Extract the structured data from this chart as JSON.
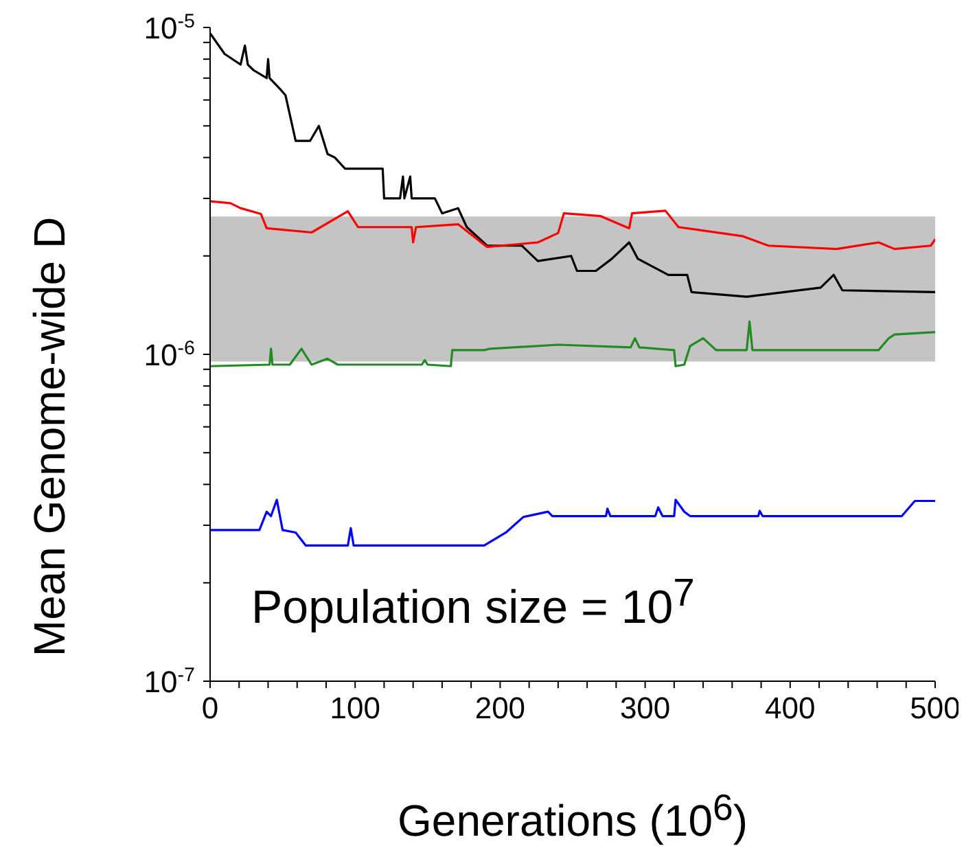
{
  "chart_data": {
    "type": "line",
    "xlabel": "Generations (10$^{6}$)",
    "ylabel": "Mean Genome-wide D",
    "log": "y",
    "xlim": [
      0,
      500
    ],
    "ylim": [
      1e-07,
      1e-05
    ],
    "xticks": [
      0,
      {
        "value": 20,
        "label": null
      },
      {
        "value": 40,
        "label": null
      },
      {
        "value": 60,
        "label": null
      },
      {
        "value": 80,
        "label": null
      },
      100,
      {
        "value": 120,
        "label": null
      },
      {
        "value": 140,
        "label": null
      },
      {
        "value": 160,
        "label": null
      },
      {
        "value": 180,
        "label": null
      },
      200,
      {
        "value": 220,
        "label": null
      },
      {
        "value": 240,
        "label": null
      },
      {
        "value": 260,
        "label": null
      },
      {
        "value": 280,
        "label": null
      },
      300,
      {
        "value": 320,
        "label": null
      },
      {
        "value": 340,
        "label": null
      },
      {
        "value": 360,
        "label": null
      },
      {
        "value": 380,
        "label": null
      },
      400,
      {
        "value": 420,
        "label": null
      },
      {
        "value": 440,
        "label": null
      },
      {
        "value": 460,
        "label": null
      },
      {
        "value": 480,
        "label": null
      },
      500
    ],
    "yticks": [
      {
        "value": 1e-07,
        "label": "10$^{-7}$"
      },
      {
        "value": 2e-07,
        "label": null
      },
      {
        "value": 3e-07,
        "label": null
      },
      {
        "value": 4e-07,
        "label": null
      },
      {
        "value": 5e-07,
        "label": null
      },
      {
        "value": 6e-07,
        "label": null
      },
      {
        "value": 7e-07,
        "label": null
      },
      {
        "value": 8e-07,
        "label": null
      },
      {
        "value": 9e-07,
        "label": null
      },
      {
        "value": 1e-06,
        "label": "10$^{-6}$"
      },
      {
        "value": 2e-06,
        "label": null
      },
      {
        "value": 3e-06,
        "label": null
      },
      {
        "value": 4e-06,
        "label": null
      },
      {
        "value": 5e-06,
        "label": null
      },
      {
        "value": 6e-06,
        "label": null
      },
      {
        "value": 7e-06,
        "label": null
      },
      {
        "value": 8e-06,
        "label": null
      },
      {
        "value": 9e-06,
        "label": null
      },
      {
        "value": 1e-05,
        "label": "10$^{-5}$"
      }
    ],
    "grid": false,
    "legend": false,
    "marker": "none",
    "line_style": "solid",
    "bands": [
      {
        "axis": "y",
        "from": 9.5e-07,
        "to": 2.64e-06,
        "label": null,
        "color": "#c4c4c4"
      }
    ],
    "annotations": [
      "Population size = 10$^{7}$"
    ],
    "series": [
      {
        "color": "#000000",
        "x": [
          0,
          10,
          21,
          24,
          26,
          30,
          39,
          40,
          41,
          48,
          52,
          59,
          69,
          75,
          81,
          86,
          93,
          119,
          120,
          131,
          133,
          134,
          138,
          139,
          155,
          160,
          171,
          177,
          191,
          215,
          226,
          249,
          253,
          266,
          277,
          289,
          295,
          316,
          329,
          332,
          370,
          421,
          430,
          436,
          500
        ],
        "values": [
          9.6e-06,
          8.3e-06,
          7.7e-06,
          8.8e-06,
          7.7e-06,
          7.4e-06,
          7e-06,
          8e-06,
          7e-06,
          6.5e-06,
          6.2e-06,
          4.5e-06,
          4.5e-06,
          5e-06,
          4.1e-06,
          4e-06,
          3.7e-06,
          3.7e-06,
          3e-06,
          3e-06,
          3.5e-06,
          3e-06,
          3.5e-06,
          3e-06,
          3e-06,
          2.7e-06,
          2.8e-06,
          2.45e-06,
          2.15e-06,
          2.15e-06,
          1.93e-06,
          2e-06,
          1.8e-06,
          1.8e-06,
          1.96e-06,
          2.2e-06,
          1.96e-06,
          1.75e-06,
          1.75e-06,
          1.55e-06,
          1.5e-06,
          1.6e-06,
          1.75e-06,
          1.57e-06,
          1.55e-06
        ]
      },
      {
        "color": "#ff0000",
        "x": [
          0,
          14,
          21,
          35,
          39,
          70,
          95,
          102,
          139,
          140,
          142,
          171,
          191,
          226,
          240,
          244,
          269,
          289,
          291,
          314,
          323,
          367,
          385,
          432,
          461,
          472,
          497,
          500
        ],
        "values": [
          2.94e-06,
          2.9e-06,
          2.8e-06,
          2.69e-06,
          2.43e-06,
          2.36e-06,
          2.74e-06,
          2.45e-06,
          2.45e-06,
          2.2e-06,
          2.45e-06,
          2.5e-06,
          2.13e-06,
          2.2e-06,
          2.35e-06,
          2.7e-06,
          2.65e-06,
          2.43e-06,
          2.7e-06,
          2.75e-06,
          2.45e-06,
          2.3e-06,
          2.15e-06,
          2.1e-06,
          2.2e-06,
          2.1e-06,
          2.15e-06,
          2.25e-06
        ]
      },
      {
        "color": "#228b22",
        "x": [
          0,
          41,
          42,
          43,
          55,
          63,
          70,
          81,
          88,
          146,
          148,
          150,
          166,
          167,
          189,
          193,
          240,
          290,
          293,
          296,
          320,
          321,
          327,
          331,
          340,
          349,
          370,
          372,
          374,
          461,
          468,
          472,
          500
        ],
        "values": [
          9.2e-07,
          9.3e-07,
          1.04e-06,
          9.3e-07,
          9.3e-07,
          1.04e-06,
          9.3e-07,
          9.7e-07,
          9.3e-07,
          9.3e-07,
          9.6e-07,
          9.3e-07,
          9.2e-07,
          1.03e-06,
          1.03e-06,
          1.04e-06,
          1.07e-06,
          1.05e-06,
          1.12e-06,
          1.05e-06,
          1.03e-06,
          9.2e-07,
          9.3e-07,
          1.06e-06,
          1.12e-06,
          1.03e-06,
          1.03e-06,
          1.26e-06,
          1.03e-06,
          1.03e-06,
          1.12e-06,
          1.15e-06,
          1.17e-06
        ]
      },
      {
        "color": "#0000ff",
        "x": [
          0,
          34,
          39,
          42,
          46,
          50,
          59,
          66,
          95,
          97,
          99,
          189,
          204,
          216,
          233,
          236,
          273,
          274,
          276,
          307,
          309,
          312,
          320,
          321,
          327,
          331,
          378,
          379,
          381,
          477,
          486,
          500
        ],
        "values": [
          2.9e-07,
          2.9e-07,
          3.3e-07,
          3.2e-07,
          3.59e-07,
          2.9e-07,
          2.85e-07,
          2.6e-07,
          2.6e-07,
          2.94e-07,
          2.6e-07,
          2.6e-07,
          2.85e-07,
          3.18e-07,
          3.3e-07,
          3.2e-07,
          3.2e-07,
          3.37e-07,
          3.2e-07,
          3.2e-07,
          3.4e-07,
          3.2e-07,
          3.2e-07,
          3.59e-07,
          3.3e-07,
          3.2e-07,
          3.2e-07,
          3.32e-07,
          3.2e-07,
          3.2e-07,
          3.56e-07,
          3.56e-07
        ]
      }
    ]
  }
}
